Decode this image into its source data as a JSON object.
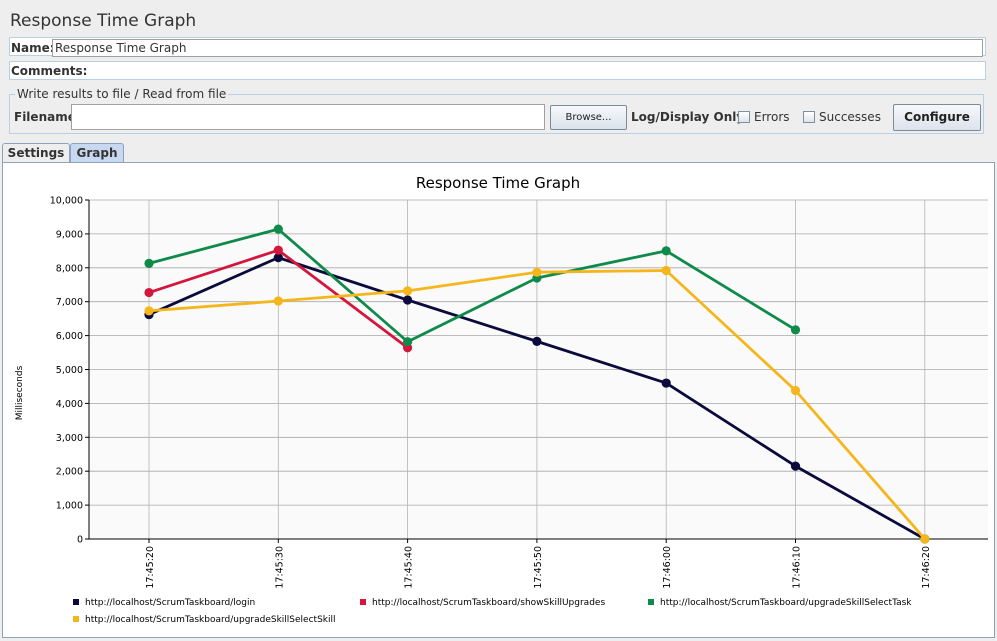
{
  "window": {
    "title": "Response Time Graph"
  },
  "form": {
    "name_label": "Name:",
    "name_value": "Response Time Graph",
    "comments_label": "Comments:",
    "results_group_label": "Write results to file / Read from file",
    "filename_label": "Filename",
    "filename_value": "",
    "browse_label": "Browse...",
    "log_display_label": "Log/Display Only:",
    "errors_label": "Errors",
    "successes_label": "Successes",
    "configure_label": "Configure"
  },
  "tabs": [
    {
      "label": "Settings",
      "selected": false
    },
    {
      "label": "Graph",
      "selected": true
    }
  ],
  "chart_data": {
    "type": "line",
    "title": "Response Time Graph",
    "xlabel": "",
    "ylabel": "Milliseconds",
    "ylim": [
      0,
      10000
    ],
    "yticks": [
      "0",
      "1,000",
      "2,000",
      "3,000",
      "4,000",
      "5,000",
      "6,000",
      "7,000",
      "8,000",
      "9,000",
      "10,000"
    ],
    "categories": [
      "17:45:20",
      "17:45:30",
      "17:45:40",
      "17:45:50",
      "17:46:00",
      "17:46:10",
      "17:46:20"
    ],
    "grid": true,
    "legend_position": "bottom",
    "series": [
      {
        "name": "http://localhost/ScrumTaskboard/login",
        "color": "#0a0a3c",
        "values": [
          6620,
          8300,
          7050,
          5830,
          4600,
          2150,
          0
        ]
      },
      {
        "name": "http://localhost/ScrumTaskboard/showSkillUpgrades",
        "color": "#d4163c",
        "values": [
          7270,
          8520,
          5640,
          null,
          null,
          null,
          null
        ]
      },
      {
        "name": "http://localhost/ScrumTaskboard/upgradeSkillSelectTask",
        "color": "#0e8a4a",
        "values": [
          8130,
          9140,
          5820,
          7700,
          8500,
          6170,
          null
        ]
      },
      {
        "name": "http://localhost/ScrumTaskboard/upgradeSkillSelectSkill",
        "color": "#f5b61c",
        "values": [
          6730,
          7020,
          7320,
          7870,
          7920,
          4380,
          0
        ]
      }
    ]
  }
}
